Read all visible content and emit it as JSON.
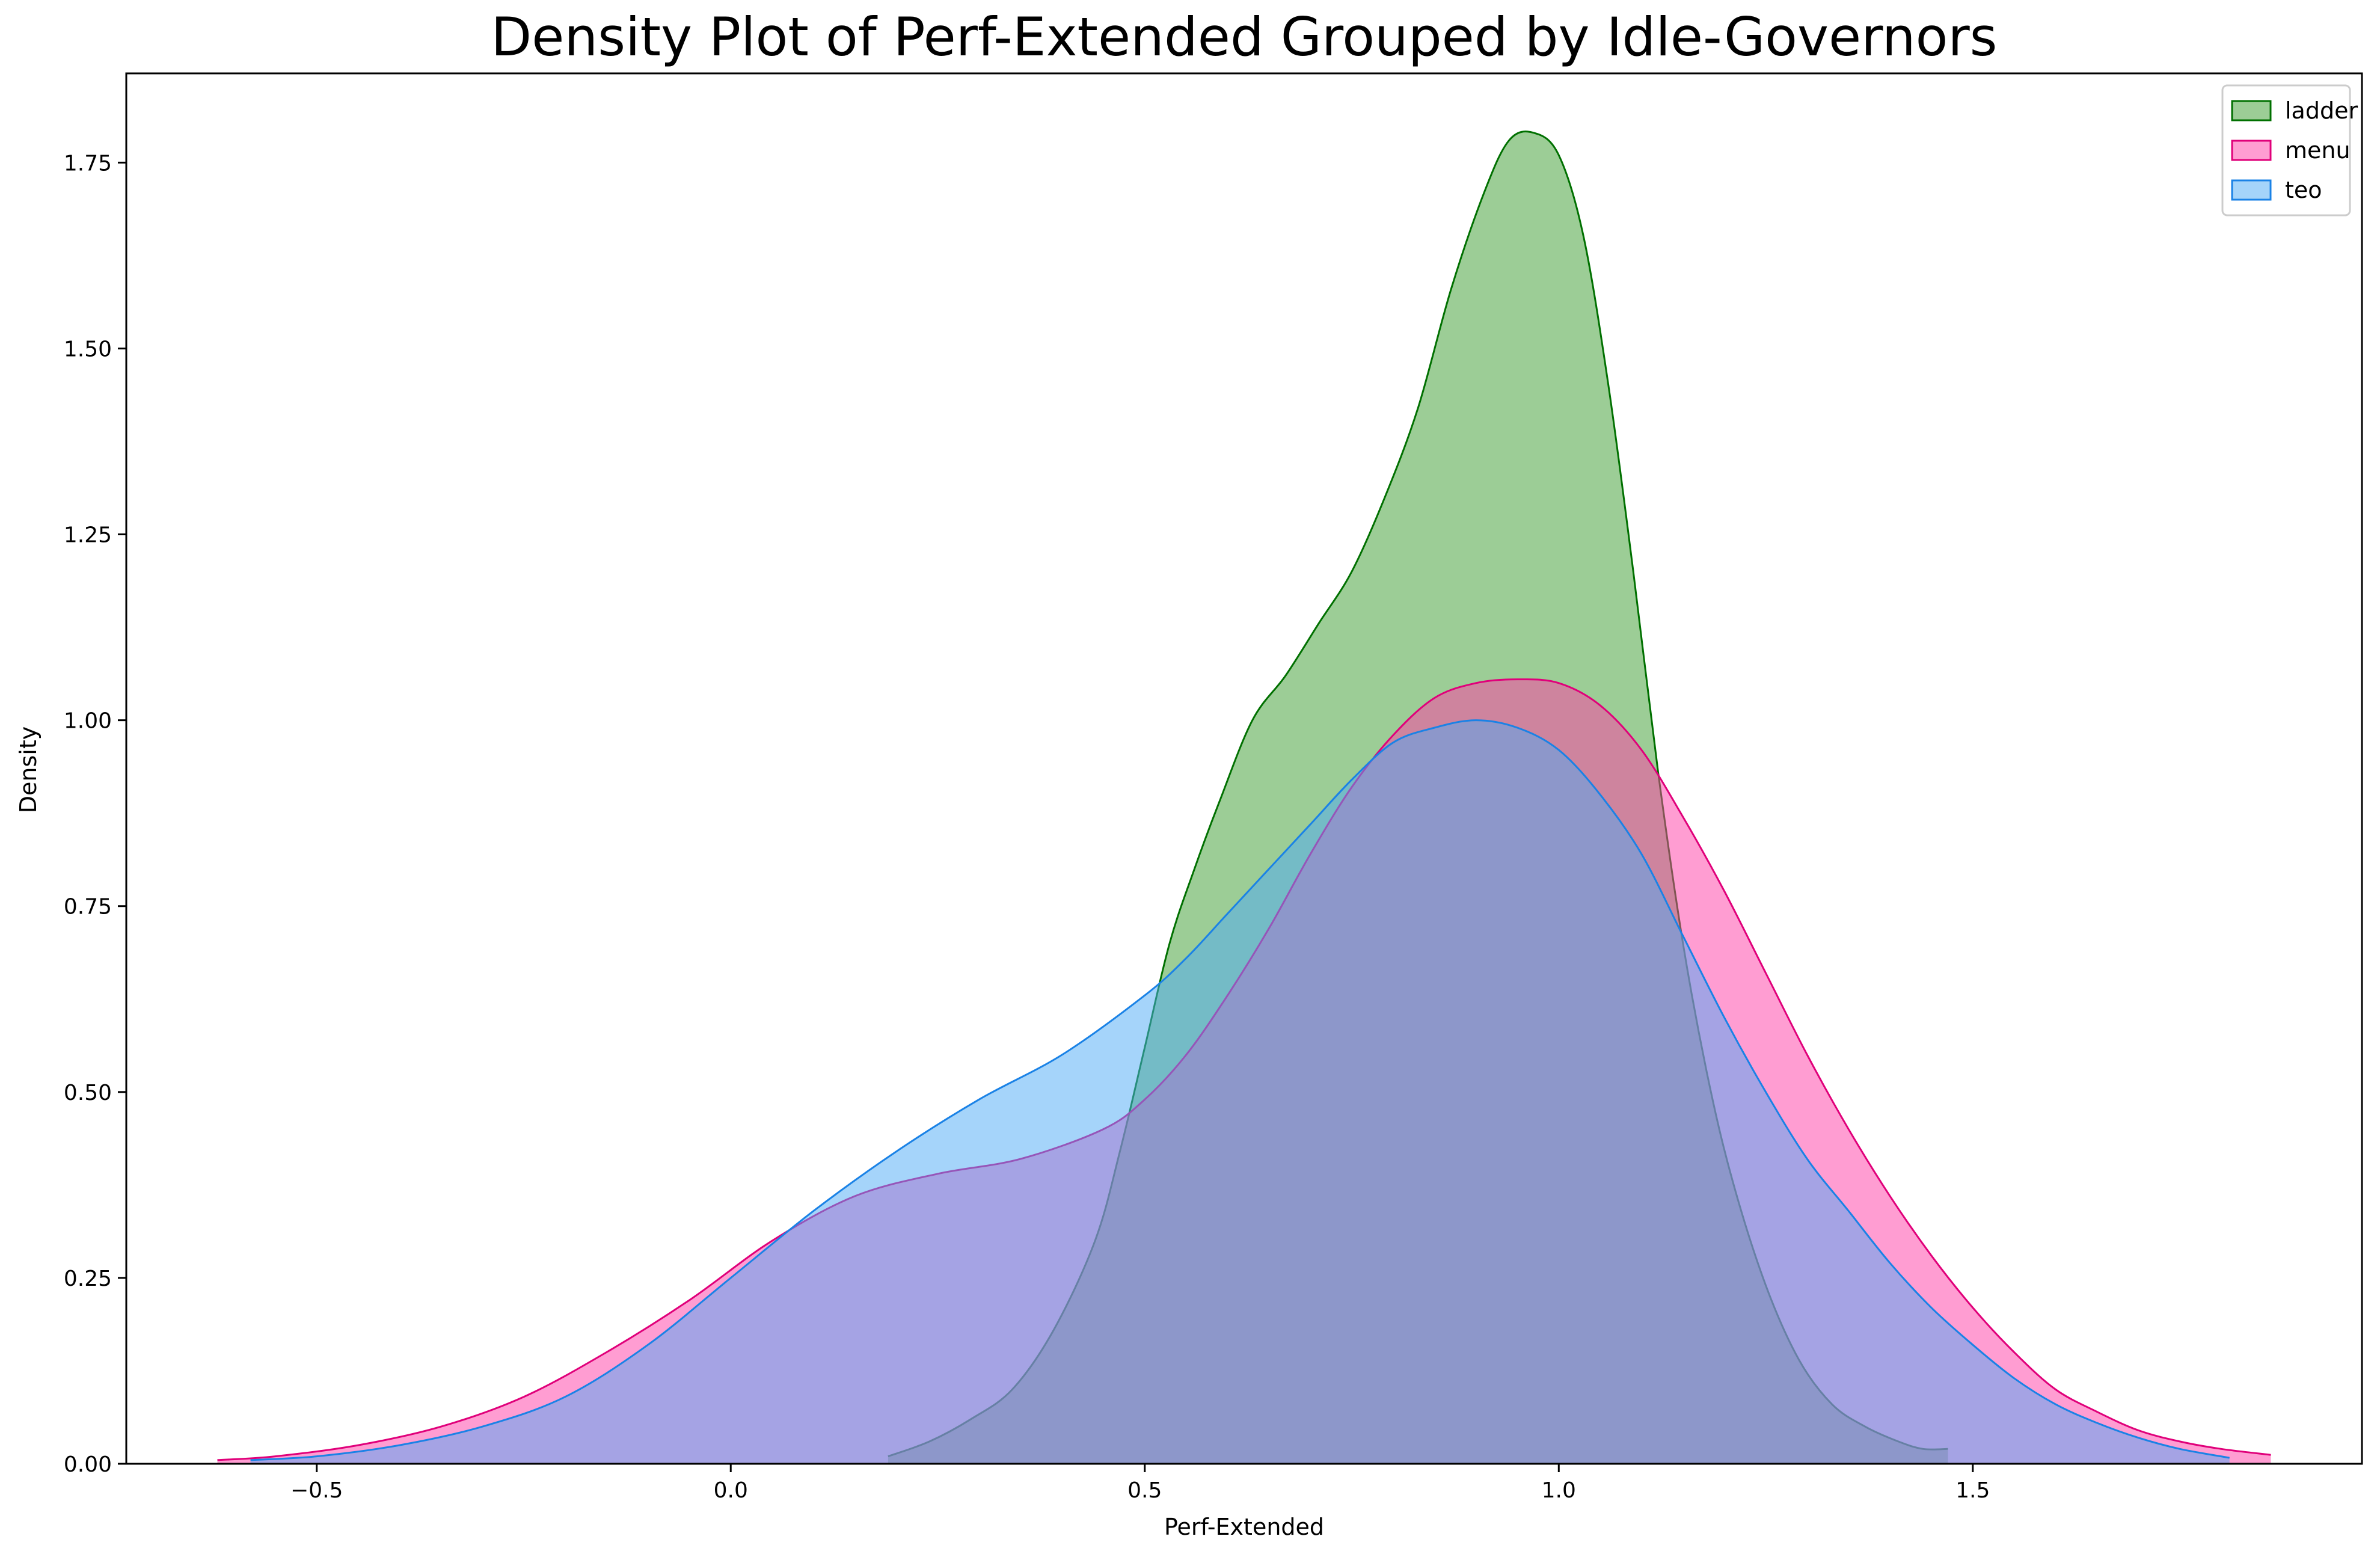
{
  "chart_data": {
    "type": "area",
    "title": "Density Plot of Perf-Extended Grouped by Idle-Governors",
    "xlabel": "Perf-Extended",
    "ylabel": "Density",
    "xlim": [
      -0.73,
      1.97
    ],
    "ylim": [
      0,
      1.87
    ],
    "xticks": [
      -0.5,
      0.0,
      0.5,
      1.0,
      1.5
    ],
    "xtick_labels": [
      "−0.5",
      "0.0",
      "0.5",
      "1.0",
      "1.5"
    ],
    "yticks": [
      0.0,
      0.25,
      0.5,
      0.75,
      1.0,
      1.25,
      1.5,
      1.75
    ],
    "ytick_labels": [
      "0.00",
      "0.25",
      "0.50",
      "0.75",
      "1.00",
      "1.25",
      "1.50",
      "1.75"
    ],
    "grid": false,
    "legend_position": "top-right",
    "series": [
      {
        "name": "ladder",
        "stroke": "#007000",
        "fill": "#3a9b2e",
        "x": [
          0.19,
          0.24,
          0.29,
          0.34,
          0.39,
          0.44,
          0.47,
          0.5,
          0.53,
          0.56,
          0.59,
          0.63,
          0.67,
          0.71,
          0.75,
          0.79,
          0.83,
          0.87,
          0.91,
          0.94,
          0.97,
          1.0,
          1.03,
          1.06,
          1.09,
          1.12,
          1.15,
          1.18,
          1.21,
          1.25,
          1.29,
          1.33,
          1.37,
          1.41,
          1.44,
          1.47
        ],
        "y": [
          0.01,
          0.03,
          0.06,
          0.1,
          0.18,
          0.3,
          0.42,
          0.56,
          0.7,
          0.8,
          0.89,
          1.0,
          1.06,
          1.13,
          1.2,
          1.3,
          1.42,
          1.58,
          1.71,
          1.78,
          1.79,
          1.76,
          1.65,
          1.45,
          1.2,
          0.93,
          0.7,
          0.52,
          0.38,
          0.24,
          0.14,
          0.08,
          0.05,
          0.03,
          0.02,
          0.02
        ]
      },
      {
        "name": "menu",
        "stroke": "#e0007a",
        "fill": "#ff3ba6",
        "x": [
          -0.62,
          -0.55,
          -0.45,
          -0.35,
          -0.25,
          -0.15,
          -0.05,
          0.05,
          0.15,
          0.25,
          0.35,
          0.45,
          0.5,
          0.55,
          0.6,
          0.65,
          0.7,
          0.75,
          0.8,
          0.85,
          0.9,
          0.95,
          1.0,
          1.05,
          1.1,
          1.15,
          1.2,
          1.25,
          1.3,
          1.35,
          1.4,
          1.45,
          1.5,
          1.55,
          1.6,
          1.65,
          1.7,
          1.75,
          1.8,
          1.86
        ],
        "y": [
          0.005,
          0.01,
          0.025,
          0.05,
          0.09,
          0.15,
          0.22,
          0.3,
          0.36,
          0.39,
          0.41,
          0.45,
          0.49,
          0.55,
          0.63,
          0.72,
          0.82,
          0.91,
          0.98,
          1.03,
          1.05,
          1.055,
          1.05,
          1.02,
          0.96,
          0.87,
          0.77,
          0.66,
          0.55,
          0.45,
          0.36,
          0.28,
          0.21,
          0.15,
          0.1,
          0.07,
          0.045,
          0.03,
          0.02,
          0.012
        ]
      },
      {
        "name": "teo",
        "stroke": "#1a82e6",
        "fill": "#4ba9f5",
        "x": [
          -0.58,
          -0.5,
          -0.4,
          -0.3,
          -0.2,
          -0.1,
          0.0,
          0.1,
          0.2,
          0.3,
          0.4,
          0.5,
          0.55,
          0.6,
          0.65,
          0.7,
          0.75,
          0.8,
          0.85,
          0.9,
          0.95,
          1.0,
          1.05,
          1.1,
          1.15,
          1.2,
          1.25,
          1.3,
          1.35,
          1.4,
          1.45,
          1.5,
          1.55,
          1.6,
          1.65,
          1.7,
          1.75,
          1.81
        ],
        "y": [
          0.005,
          0.01,
          0.025,
          0.05,
          0.09,
          0.16,
          0.25,
          0.34,
          0.42,
          0.49,
          0.55,
          0.63,
          0.68,
          0.74,
          0.8,
          0.86,
          0.92,
          0.97,
          0.99,
          1.0,
          0.99,
          0.96,
          0.9,
          0.82,
          0.71,
          0.6,
          0.5,
          0.41,
          0.34,
          0.27,
          0.21,
          0.16,
          0.115,
          0.08,
          0.055,
          0.035,
          0.02,
          0.008
        ]
      }
    ]
  }
}
